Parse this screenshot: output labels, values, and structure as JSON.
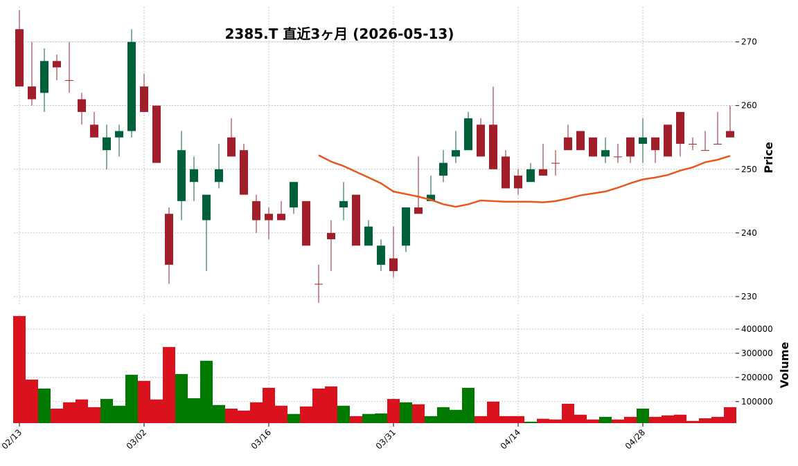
{
  "chart_data": [
    {
      "type": "candlestick",
      "title": "2385.T 直近3ヶ月 (2026-05-13)",
      "ylabel": "Price",
      "categories": [
        "02/13",
        null,
        null,
        null,
        null,
        null,
        null,
        null,
        null,
        null,
        "03/02",
        null,
        null,
        null,
        null,
        null,
        null,
        null,
        null,
        null,
        "03/16",
        null,
        null,
        null,
        null,
        null,
        null,
        null,
        null,
        null,
        "03/31",
        null,
        null,
        null,
        null,
        null,
        null,
        null,
        null,
        null,
        "04/14",
        null,
        null,
        null,
        null,
        null,
        null,
        null,
        null,
        null,
        "04/28",
        null,
        null,
        null,
        null,
        null,
        null,
        null
      ],
      "open": [
        272,
        263,
        262,
        267,
        264,
        261,
        257,
        253,
        255,
        256,
        263,
        260,
        243,
        245,
        248,
        242,
        248,
        255,
        253,
        245,
        243,
        243,
        244,
        245,
        232,
        240,
        244,
        246,
        238,
        235,
        236,
        238,
        244,
        245,
        249,
        252,
        253,
        257,
        257,
        252,
        249,
        248,
        250,
        251,
        255,
        256,
        255,
        252,
        252,
        255,
        254,
        255,
        257,
        259,
        254,
        253,
        254,
        256
      ],
      "high": [
        275,
        270,
        269,
        268,
        270,
        262,
        259,
        257,
        257,
        272,
        265,
        260,
        244,
        256,
        252,
        246,
        254,
        258,
        254,
        246,
        244,
        245,
        248,
        245,
        235,
        242,
        248,
        246,
        242,
        239,
        241,
        244,
        252,
        249,
        253,
        256,
        259,
        258,
        263,
        253,
        250,
        251,
        254,
        253,
        257,
        256,
        255,
        255,
        254,
        255,
        258,
        255,
        257,
        259,
        255,
        256,
        259,
        260
      ],
      "low": [
        263,
        260,
        259,
        264,
        262,
        257,
        255,
        250,
        252,
        255,
        259,
        251,
        232,
        242,
        245,
        234,
        247,
        252,
        246,
        240,
        239,
        242,
        243,
        238,
        229,
        234,
        242,
        238,
        238,
        234,
        233,
        237,
        243,
        245,
        248,
        251,
        253,
        252,
        250,
        247,
        246,
        248,
        249,
        249,
        253,
        253,
        252,
        251,
        251,
        251,
        251,
        251,
        252,
        252,
        253,
        253,
        254,
        255
      ],
      "close": [
        263,
        261,
        267,
        266,
        264,
        259,
        255,
        255,
        256,
        270,
        259,
        251,
        235,
        253,
        250,
        246,
        250,
        252,
        246,
        242,
        242,
        242,
        248,
        238,
        232,
        239,
        245,
        238,
        241,
        238,
        234,
        244,
        243,
        246,
        251,
        253,
        258,
        252,
        250,
        247,
        247,
        250,
        249,
        251,
        253,
        253,
        252,
        253,
        252,
        252,
        255,
        253,
        252,
        254,
        254,
        253,
        254,
        255
      ],
      "up_color": "#00603a",
      "down_color": "#a01f2a",
      "series": [
        {
          "color": "#e8571b",
          "values": [
            null,
            null,
            null,
            null,
            null,
            null,
            null,
            null,
            null,
            null,
            null,
            null,
            null,
            null,
            null,
            null,
            null,
            null,
            null,
            null,
            null,
            null,
            null,
            null,
            252.2,
            251.2,
            250.5,
            249.6,
            248.7,
            247.8,
            246.5,
            246.1,
            245.7,
            245.2,
            244.5,
            244.1,
            244.5,
            245.1,
            245.0,
            244.9,
            244.9,
            244.9,
            244.8,
            245.0,
            245.4,
            245.9,
            246.2,
            246.5,
            247.1,
            247.8,
            248.4,
            248.7,
            249.1,
            249.8,
            250.3,
            251.1,
            251.5,
            252.1
          ]
        }
      ],
      "ylim": [
        228.8,
        275.5
      ],
      "yticks": [
        230,
        240,
        250,
        260,
        270
      ],
      "grid": true
    },
    {
      "type": "bar",
      "ylabel": "Volume",
      "values": [
        454000,
        191000,
        154000,
        71000,
        97000,
        109000,
        77000,
        111000,
        83000,
        211000,
        186000,
        109000,
        326000,
        214000,
        114000,
        269000,
        86000,
        71000,
        63000,
        97000,
        157000,
        83000,
        49000,
        80000,
        154000,
        163000,
        83000,
        40000,
        49000,
        51000,
        111000,
        97000,
        89000,
        40000,
        77000,
        66000,
        157000,
        40000,
        100000,
        40000,
        40000,
        17000,
        29000,
        26000,
        91000,
        46000,
        26000,
        37000,
        26000,
        37000,
        71000,
        37000,
        43000,
        46000,
        20000,
        31000,
        37000,
        77000
      ],
      "up_color": "#007a00",
      "down_color": "#d9121e",
      "ylim": [
        11000,
        460000
      ],
      "yticks": [
        100000,
        200000,
        300000,
        400000
      ],
      "grid": true
    }
  ]
}
